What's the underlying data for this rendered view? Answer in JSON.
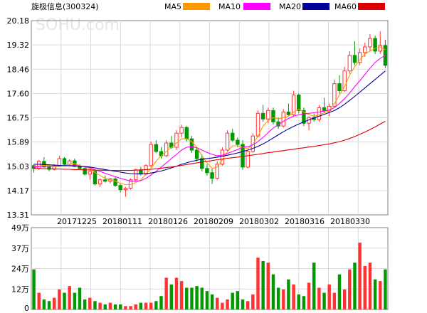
{
  "page": {
    "title": "旋极信息(300324)",
    "watermark": "SOHU.com"
  },
  "legend": [
    {
      "label": "MA5",
      "color": "#ff9900"
    },
    {
      "label": "MA10",
      "color": "#ff00ff"
    },
    {
      "label": "MA20",
      "color": "#000099"
    },
    {
      "label": "MA60",
      "color": "#dd0000"
    }
  ],
  "colors": {
    "up": "#ff3333",
    "down": "#009900",
    "grid": "#d9d9d9",
    "axis": "#808080"
  },
  "chart_data": [
    {
      "type": "candlestick",
      "title": "旋极信息(300324)",
      "ylim": [
        13.31,
        20.18
      ],
      "y_ticks": [
        "20.18",
        "19.32",
        "18.46",
        "17.60",
        "16.75",
        "15.89",
        "15.03",
        "14.17",
        "13.31"
      ],
      "x_labels": [
        "20171225",
        "20180111",
        "20180126",
        "20180209",
        "20180302",
        "20180316",
        "20180330"
      ],
      "grid": true,
      "ohlc": [
        [
          15.05,
          15.1,
          14.8,
          14.95
        ],
        [
          14.95,
          15.25,
          14.9,
          15.2
        ],
        [
          15.2,
          15.35,
          14.98,
          15.0
        ],
        [
          15.0,
          15.05,
          14.85,
          14.92
        ],
        [
          14.92,
          15.1,
          14.88,
          15.05
        ],
        [
          15.05,
          15.4,
          15.0,
          15.3
        ],
        [
          15.3,
          15.35,
          15.05,
          15.1
        ],
        [
          15.1,
          15.28,
          15.06,
          15.22
        ],
        [
          15.22,
          15.3,
          15.0,
          15.02
        ],
        [
          15.02,
          15.1,
          14.9,
          14.95
        ],
        [
          14.95,
          15.0,
          14.7,
          14.75
        ],
        [
          14.75,
          14.9,
          14.55,
          14.85
        ],
        [
          14.85,
          14.9,
          14.35,
          14.4
        ],
        [
          14.4,
          14.6,
          14.3,
          14.55
        ],
        [
          14.55,
          14.7,
          14.45,
          14.5
        ],
        [
          14.5,
          14.62,
          14.42,
          14.58
        ],
        [
          14.58,
          14.65,
          14.3,
          14.35
        ],
        [
          14.35,
          14.4,
          14.1,
          14.2
        ],
        [
          14.2,
          14.3,
          13.95,
          14.25
        ],
        [
          14.25,
          14.6,
          14.2,
          14.55
        ],
        [
          14.55,
          14.95,
          14.5,
          14.9
        ],
        [
          14.9,
          15.0,
          14.7,
          14.75
        ],
        [
          14.75,
          15.1,
          14.7,
          15.05
        ],
        [
          15.05,
          15.9,
          15.0,
          15.8
        ],
        [
          15.8,
          15.95,
          15.5,
          15.55
        ],
        [
          15.55,
          15.7,
          15.3,
          15.4
        ],
        [
          15.4,
          15.95,
          15.35,
          15.85
        ],
        [
          15.85,
          16.1,
          15.65,
          15.7
        ],
        [
          15.7,
          16.3,
          15.6,
          16.2
        ],
        [
          16.2,
          16.5,
          16.05,
          16.4
        ],
        [
          16.4,
          16.45,
          15.9,
          16.0
        ],
        [
          16.0,
          16.1,
          15.5,
          15.6
        ],
        [
          15.6,
          15.7,
          15.2,
          15.3
        ],
        [
          15.3,
          15.45,
          14.85,
          14.95
        ],
        [
          14.95,
          15.1,
          14.7,
          14.8
        ],
        [
          14.8,
          14.95,
          14.4,
          14.6
        ],
        [
          14.6,
          15.2,
          14.55,
          15.1
        ],
        [
          15.1,
          15.7,
          15.05,
          15.6
        ],
        [
          15.6,
          16.3,
          15.55,
          16.2
        ],
        [
          16.2,
          16.35,
          15.9,
          15.95
        ],
        [
          15.95,
          16.05,
          15.7,
          15.8
        ],
        [
          15.8,
          15.95,
          14.9,
          15.0
        ],
        [
          15.0,
          15.6,
          14.95,
          15.55
        ],
        [
          15.55,
          16.2,
          15.5,
          16.1
        ],
        [
          16.1,
          17.0,
          16.05,
          16.9
        ],
        [
          16.9,
          17.2,
          16.6,
          16.7
        ],
        [
          16.7,
          17.1,
          16.55,
          17.0
        ],
        [
          17.0,
          17.1,
          16.5,
          16.6
        ],
        [
          16.6,
          16.75,
          16.35,
          16.45
        ],
        [
          16.45,
          17.05,
          16.4,
          16.95
        ],
        [
          16.95,
          17.25,
          16.8,
          16.85
        ],
        [
          16.85,
          17.7,
          16.8,
          17.55
        ],
        [
          17.55,
          17.6,
          16.9,
          17.0
        ],
        [
          17.0,
          17.1,
          16.45,
          16.55
        ],
        [
          16.55,
          16.8,
          16.3,
          16.75
        ],
        [
          16.75,
          16.9,
          16.6,
          16.68
        ],
        [
          16.68,
          17.2,
          16.6,
          17.1
        ],
        [
          17.1,
          17.45,
          16.9,
          17.0
        ],
        [
          17.0,
          17.25,
          16.8,
          17.15
        ],
        [
          17.15,
          18.1,
          17.1,
          17.95
        ],
        [
          17.95,
          18.25,
          17.6,
          17.7
        ],
        [
          17.7,
          18.55,
          17.65,
          18.4
        ],
        [
          18.4,
          19.1,
          18.3,
          18.95
        ],
        [
          18.95,
          19.45,
          18.6,
          18.7
        ],
        [
          18.7,
          19.2,
          18.6,
          19.05
        ],
        [
          19.05,
          19.4,
          18.9,
          19.25
        ],
        [
          19.25,
          19.7,
          19.1,
          19.55
        ],
        [
          19.55,
          19.65,
          19.0,
          19.1
        ],
        [
          19.1,
          19.8,
          19.0,
          19.3
        ],
        [
          19.3,
          19.5,
          18.5,
          18.6
        ]
      ],
      "ma": {
        "MA5": [
          15.02,
          15.04,
          15.06,
          15.05,
          15.02,
          15.02,
          15.06,
          15.1,
          15.12,
          15.05,
          15.0,
          14.95,
          14.8,
          14.7,
          14.6,
          14.55,
          14.5,
          14.42,
          14.38,
          14.38,
          14.45,
          14.55,
          14.75,
          14.95,
          15.2,
          15.4,
          15.55,
          15.7,
          15.85,
          16.0,
          16.0,
          15.9,
          15.7,
          15.4,
          15.15,
          14.95,
          15.0,
          15.25,
          15.55,
          15.75,
          15.75,
          15.7,
          15.65,
          15.8,
          16.1,
          16.45,
          16.65,
          16.75,
          16.7,
          16.75,
          16.8,
          16.95,
          17.05,
          16.95,
          16.85,
          16.8,
          16.85,
          16.92,
          17.0,
          17.25,
          17.55,
          17.85,
          18.25,
          18.55,
          18.8,
          19.0,
          19.1,
          19.2,
          19.25,
          19.15
        ],
        "MA10": [
          15.0,
          15.01,
          15.02,
          15.03,
          15.04,
          15.04,
          15.05,
          15.05,
          15.06,
          15.04,
          15.01,
          14.98,
          14.9,
          14.85,
          14.78,
          14.72,
          14.66,
          14.6,
          14.55,
          14.5,
          14.5,
          14.52,
          14.6,
          14.72,
          14.85,
          15.0,
          15.15,
          15.3,
          15.45,
          15.6,
          15.7,
          15.72,
          15.68,
          15.6,
          15.52,
          15.45,
          15.4,
          15.42,
          15.48,
          15.55,
          15.62,
          15.7,
          15.72,
          15.78,
          15.9,
          16.05,
          16.22,
          16.38,
          16.5,
          16.62,
          16.72,
          16.8,
          16.85,
          16.88,
          16.9,
          16.92,
          16.95,
          16.98,
          17.02,
          17.1,
          17.25,
          17.42,
          17.62,
          17.85,
          18.05,
          18.28,
          18.5,
          18.7,
          18.85,
          18.95
        ],
        "MA20": [
          15.1,
          15.1,
          15.09,
          15.08,
          15.07,
          15.06,
          15.05,
          15.05,
          15.04,
          15.03,
          15.02,
          15.0,
          14.97,
          14.94,
          14.91,
          14.88,
          14.85,
          14.82,
          14.79,
          14.77,
          14.76,
          14.76,
          14.77,
          14.79,
          14.82,
          14.86,
          14.91,
          14.97,
          15.03,
          15.1,
          15.15,
          15.2,
          15.24,
          15.28,
          15.3,
          15.32,
          15.35,
          15.38,
          15.42,
          15.46,
          15.5,
          15.55,
          15.6,
          15.66,
          15.73,
          15.82,
          15.92,
          16.03,
          16.14,
          16.25,
          16.35,
          16.44,
          16.52,
          16.6,
          16.67,
          16.74,
          16.8,
          16.86,
          16.93,
          17.0,
          17.1,
          17.22,
          17.36,
          17.5,
          17.65,
          17.8,
          17.95,
          18.1,
          18.25,
          18.4
        ],
        "MA60": [
          14.95,
          14.95,
          14.94,
          14.94,
          14.93,
          14.93,
          14.92,
          14.92,
          14.91,
          14.91,
          14.9,
          14.9,
          14.89,
          14.89,
          14.88,
          14.88,
          14.88,
          14.88,
          14.88,
          14.88,
          14.89,
          14.9,
          14.91,
          14.92,
          14.94,
          14.96,
          14.98,
          15.0,
          15.03,
          15.06,
          15.09,
          15.12,
          15.15,
          15.18,
          15.2,
          15.23,
          15.26,
          15.28,
          15.31,
          15.33,
          15.35,
          15.38,
          15.4,
          15.43,
          15.45,
          15.48,
          15.51,
          15.53,
          15.56,
          15.58,
          15.61,
          15.63,
          15.66,
          15.68,
          15.71,
          15.73,
          15.76,
          15.79,
          15.82,
          15.86,
          15.9,
          15.95,
          16.01,
          16.08,
          16.16,
          16.24,
          16.33,
          16.42,
          16.52,
          16.62
        ]
      }
    },
    {
      "type": "bar",
      "title": "",
      "ylim": [
        0,
        49
      ],
      "y_ticks": [
        "49万",
        "37万",
        "24万",
        "12万",
        "0"
      ],
      "unit": "万",
      "values": [
        24,
        10,
        6,
        5,
        7,
        12,
        10,
        14,
        10,
        13,
        6,
        7,
        5,
        4,
        3,
        4,
        3,
        3,
        2,
        2,
        3,
        4,
        4,
        4,
        5,
        8,
        19,
        15,
        19,
        17,
        13,
        13,
        14,
        13,
        11,
        9,
        7,
        4,
        6,
        10,
        11,
        6,
        5,
        9,
        31,
        29,
        28,
        21,
        13,
        12,
        18,
        15,
        9,
        8,
        16,
        28,
        13,
        10,
        15,
        10,
        21,
        12,
        24,
        28,
        40,
        26,
        28,
        18,
        17,
        24
      ]
    }
  ]
}
